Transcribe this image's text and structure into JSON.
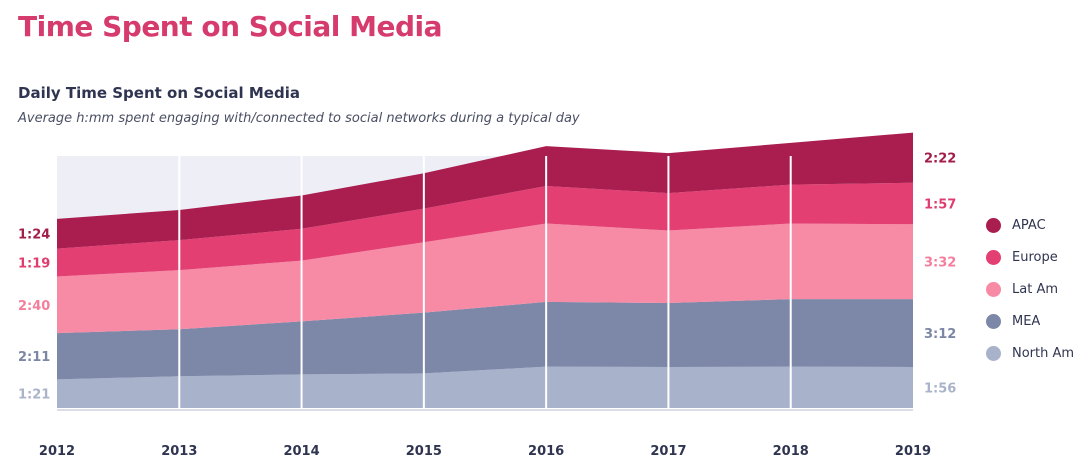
{
  "header": {
    "title": "Time Spent on Social Media"
  },
  "chart_data": {
    "type": "area",
    "stacked": true,
    "title": "Daily Time Spent on Social Media",
    "subtitle": "Average h:mm spent engaging with/connected to social networks during a typical day",
    "x": [
      "2012",
      "2013",
      "2014",
      "2015",
      "2016",
      "2017",
      "2018",
      "2019"
    ],
    "ylabel": "",
    "xlabel": "",
    "grid": true,
    "legend_position": "right",
    "units": "minutes",
    "series": [
      {
        "name": "North Am",
        "color": "#a8b2ca",
        "values": [
          81,
          90,
          95,
          98,
          117,
          116,
          117,
          116
        ],
        "start_label": "1:21",
        "end_label": "1:56",
        "label_color": "#aab3c9"
      },
      {
        "name": "MEA",
        "color": "#7d88a8",
        "values": [
          131,
          133,
          150,
          172,
          183,
          181,
          191,
          192
        ],
        "start_label": "2:11",
        "end_label": "3:12",
        "label_color": "#7c86a5"
      },
      {
        "name": "Lat Am",
        "color": "#f78ba5",
        "values": [
          160,
          167,
          172,
          199,
          222,
          205,
          214,
          212
        ],
        "start_label": "2:40",
        "end_label": "3:32",
        "label_color": "#f47f9d"
      },
      {
        "name": "Europe",
        "color": "#e43f72",
        "values": [
          79,
          85,
          90,
          95,
          106,
          106,
          110,
          117
        ],
        "start_label": "1:19",
        "end_label": "1:57",
        "label_color": "#e13c6f"
      },
      {
        "name": "APAC",
        "color": "#a91e4f",
        "values": [
          84,
          85,
          94,
          100,
          113,
          113,
          118,
          142
        ],
        "start_label": "1:24",
        "end_label": "2:22",
        "label_color": "#a31d4b"
      }
    ]
  }
}
